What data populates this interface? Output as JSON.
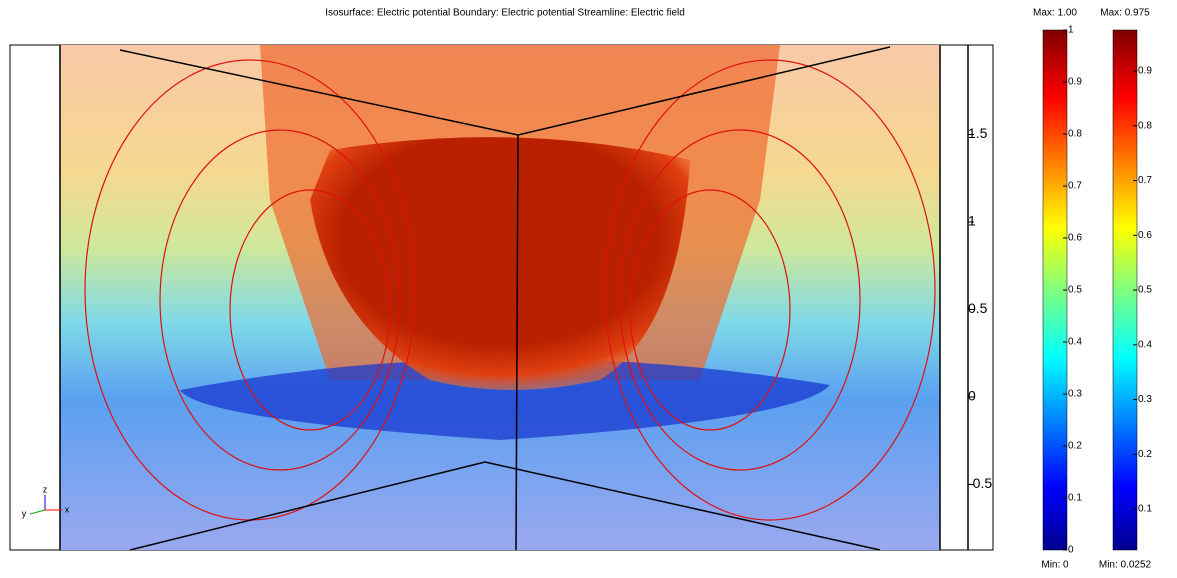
{
  "title": "Isosurface: Electric potential  Boundary: Electric potential  Streamline: Electric field",
  "z_axis": {
    "ticks": [
      1.5,
      1,
      0.5,
      0,
      -0.5
    ]
  },
  "triad": {
    "labels": [
      "z",
      "y",
      "x"
    ]
  },
  "colorbars": [
    {
      "max_label": "Max: 1.00",
      "min_label": "Min: 0",
      "range": [
        0,
        1.0
      ],
      "ticks": [
        1,
        0.9,
        0.8,
        0.7,
        0.6,
        0.5,
        0.4,
        0.3,
        0.2,
        0.1,
        0
      ]
    },
    {
      "max_label": "Max: 0.975",
      "min_label": "Min: 0.0252",
      "range": [
        0.0252,
        0.975
      ],
      "ticks": [
        0.9,
        0.8,
        0.7,
        0.6,
        0.5,
        0.4,
        0.3,
        0.2,
        0.1
      ]
    }
  ]
}
